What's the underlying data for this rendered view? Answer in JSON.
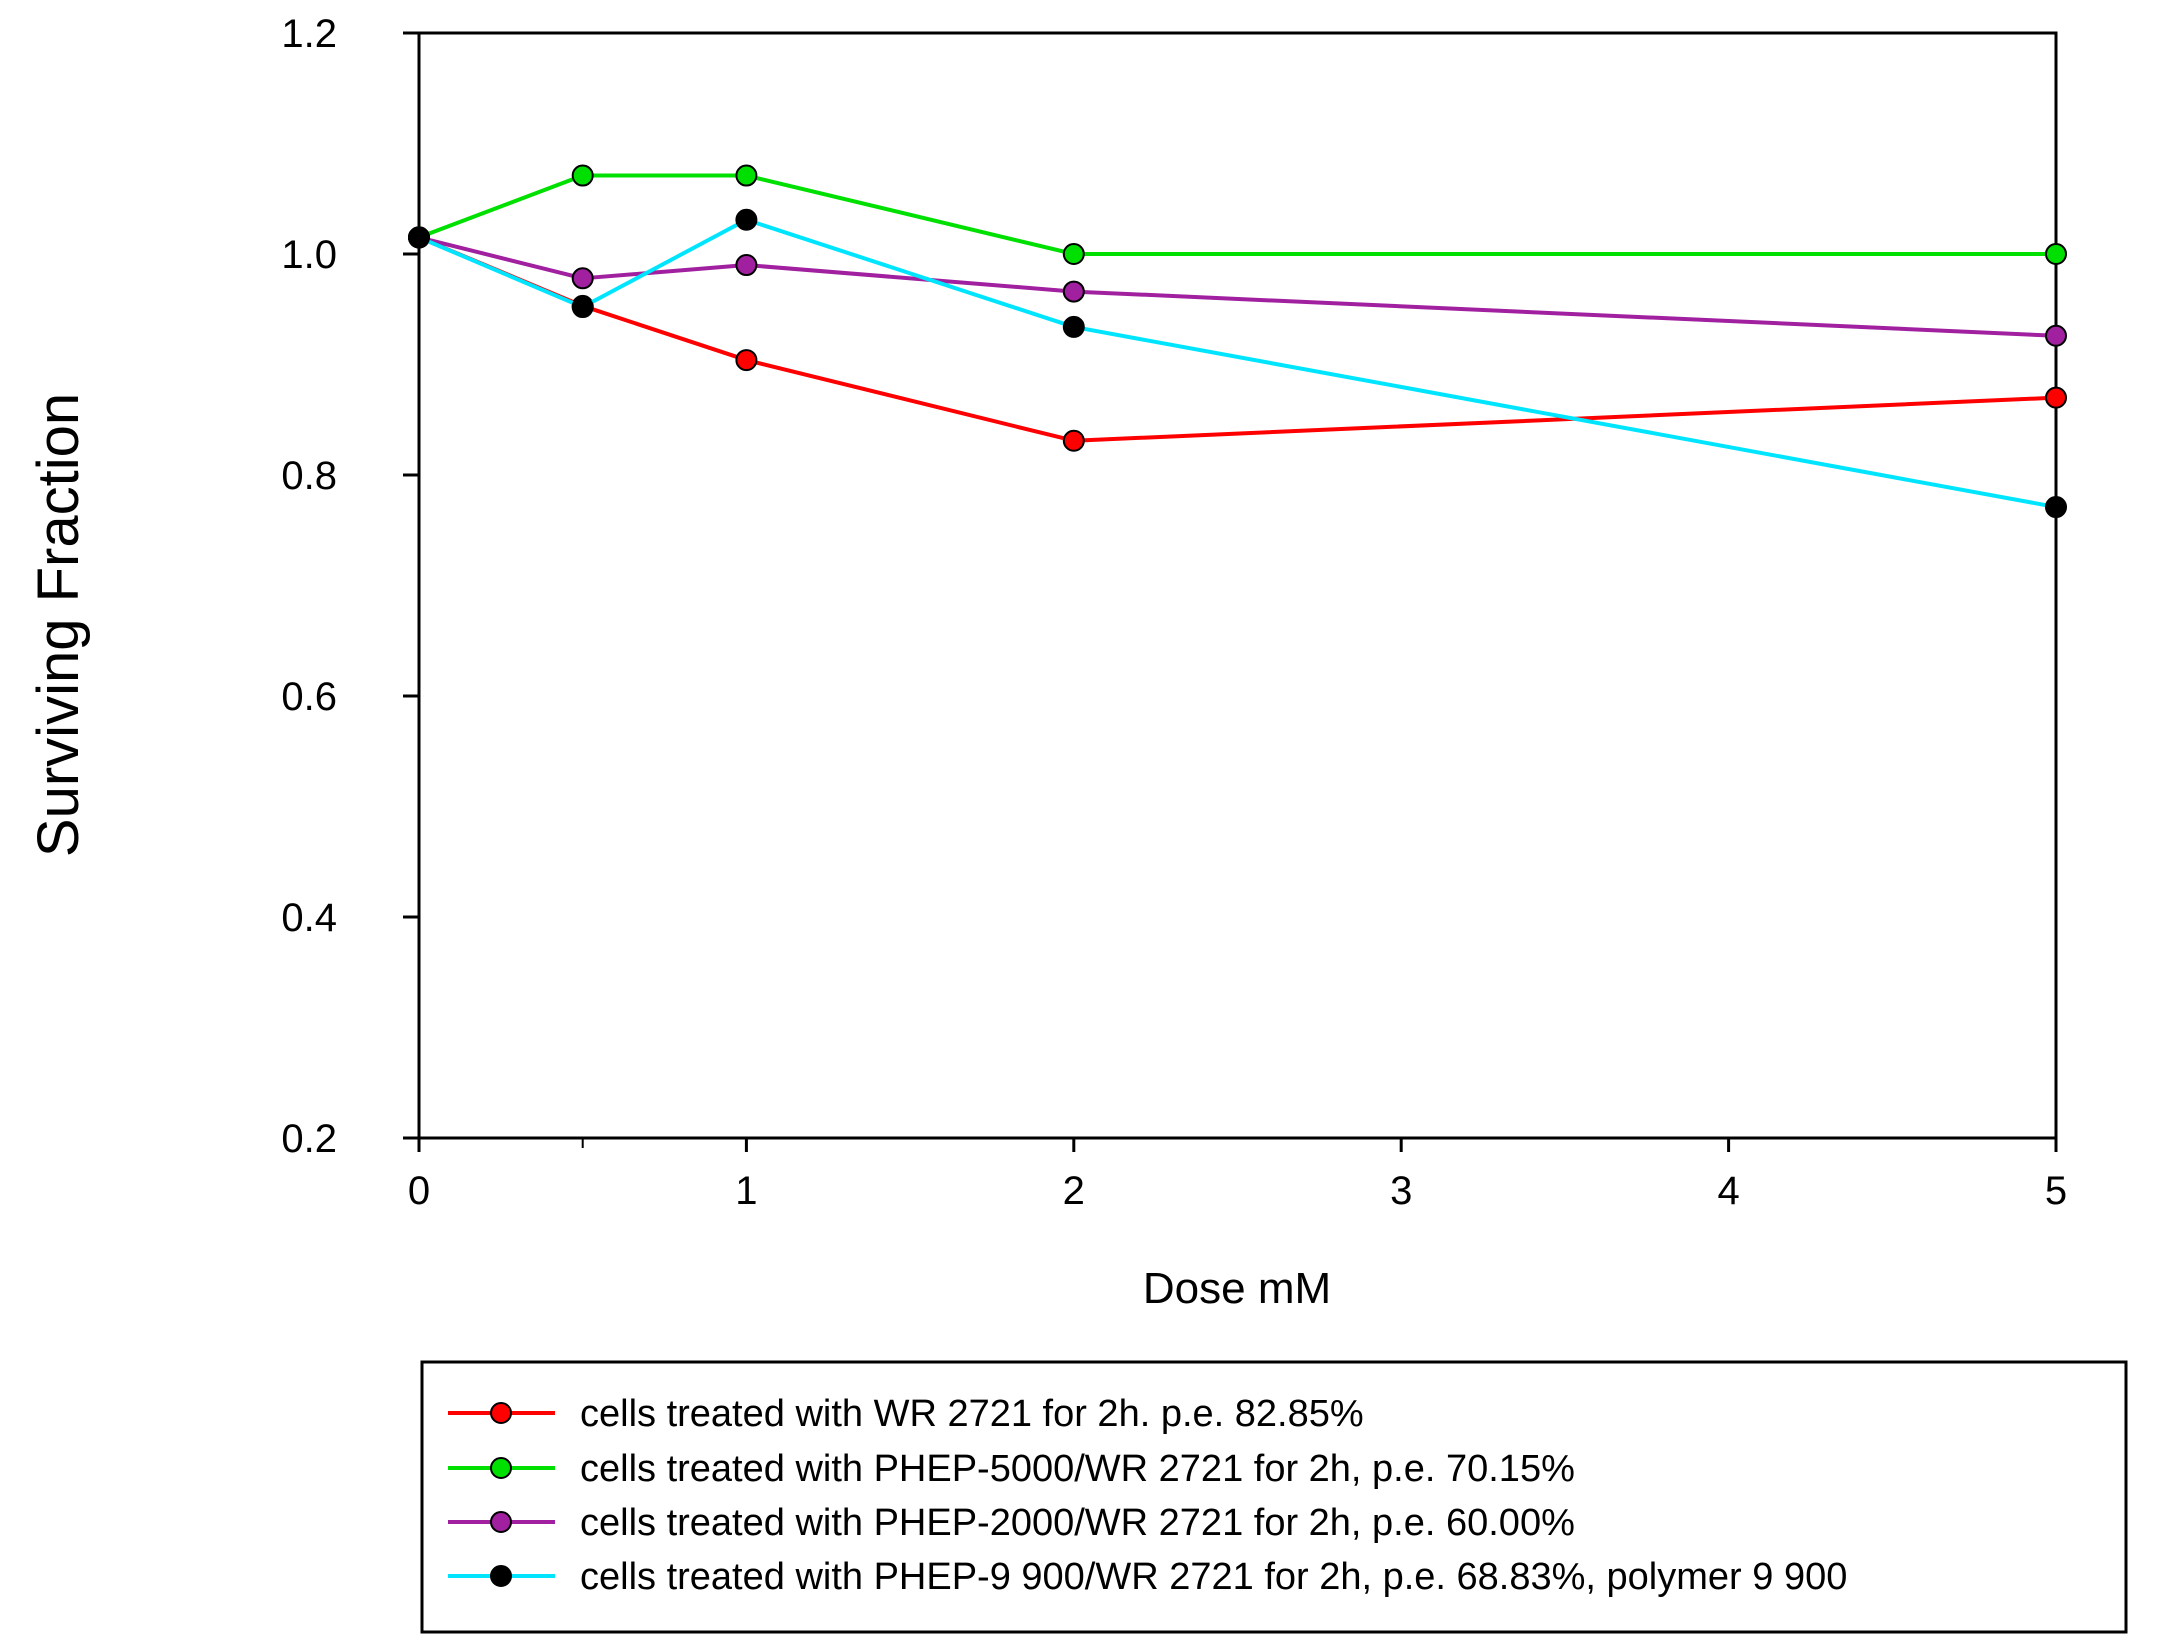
{
  "chart_data": {
    "type": "line",
    "title": "",
    "xlabel": "Dose mM",
    "ylabel": "Surviving Fraction",
    "xlim": [
      0,
      5
    ],
    "ylim": [
      0.2,
      1.2
    ],
    "x_ticks": [
      0,
      1,
      2,
      3,
      4,
      5
    ],
    "x_tick_labels": [
      "0",
      "1",
      "2",
      "3",
      "4",
      "5"
    ],
    "y_ticks": [
      0.2,
      0.4,
      0.6,
      0.8,
      1.0,
      1.2
    ],
    "y_tick_labels": [
      "0.2",
      "0.4",
      "0.6",
      "0.8",
      "1.0",
      "1.2"
    ],
    "grid": false,
    "legend_position": "bottom",
    "series": [
      {
        "name": "cells treated with WR 2721 for 2h. p.e. 82.85%",
        "line_color": "#ff0000",
        "marker_color": "#ff0000",
        "x": [
          0,
          0.5,
          1,
          2,
          5
        ],
        "values": [
          1.015,
          0.953,
          0.904,
          0.831,
          0.87
        ]
      },
      {
        "name": "cells treated with PHEP-5000/WR 2721 for 2h, p.e. 70.15%",
        "line_color": "#00e000",
        "marker_color": "#00e000",
        "x": [
          0,
          0.5,
          1,
          2,
          5
        ],
        "values": [
          1.015,
          1.071,
          1.071,
          1.0,
          1.0
        ]
      },
      {
        "name": "cells treated with PHEP-2000/WR 2721 for 2h, p.e. 60.00%",
        "line_color": "#a020a0",
        "marker_color": "#a020a0",
        "x": [
          0,
          0.5,
          1,
          2,
          5
        ],
        "values": [
          1.015,
          0.978,
          0.99,
          0.966,
          0.926
        ]
      },
      {
        "name": "cells treated with PHEP-9 900/WR 2721 for 2h, p.e. 68.83%, polymer 9 900",
        "line_color": "#00e5ff",
        "marker_color": "#000000",
        "x": [
          0,
          0.5,
          1,
          2,
          5
        ],
        "values": [
          1.015,
          0.952,
          1.031,
          0.934,
          0.771
        ]
      }
    ]
  }
}
